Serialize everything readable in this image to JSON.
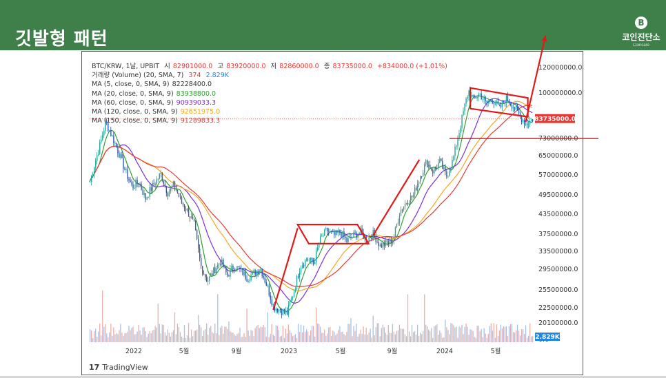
{
  "slide": {
    "title": "깃발형 패턴",
    "logo_name": "코인진단소",
    "logo_sub": "Coincare",
    "logo_glyph": "B"
  },
  "legend": {
    "symbol": "BTC/KRW, 1날, UPBIT",
    "ohlc": [
      {
        "label": "시",
        "value": "82901000.0"
      },
      {
        "label": "고",
        "value": "83920000.0"
      },
      {
        "label": "저",
        "value": "82860000.0"
      },
      {
        "label": "종",
        "value": "83735000.0"
      }
    ],
    "change": "+834000.0 (+1.01%)",
    "volume": {
      "label": "거래량 (Volume) (20, SMA, 7)",
      "v1": "374",
      "v2": "2.829K"
    },
    "ma": [
      {
        "label": "MA (5, close, 0, SMA, 9)",
        "value": "82228400.0",
        "color": "#111111"
      },
      {
        "label": "MA (20, close, 0, SMA, 9)",
        "value": "83938800.0",
        "color": "#2e9e2e"
      },
      {
        "label": "MA (60, close, 0, SMA, 9)",
        "value": "90939033.3",
        "color": "#7b2fd6"
      },
      {
        "label": "MA (120, close, 0, SMA, 9)",
        "value": "92651975.0",
        "color": "#f5a623"
      },
      {
        "label": "MA (150, close, 0, SMA, 9)",
        "value": "91289833.3",
        "color": "#e53935"
      }
    ]
  },
  "brand": {
    "mark": "17",
    "name": "TradingView"
  },
  "chart_data": {
    "type": "candlestick",
    "y_scale": "log",
    "y_ticks": [
      "120000000.0",
      "100000000.0",
      "73000000.0",
      "65000000.0",
      "57000000.0",
      "49500000.0",
      "43500000.0",
      "37500000.0",
      "33500000.0",
      "29500000.0",
      "25500000.0",
      "22500000.0",
      "20100000.0",
      "0.0"
    ],
    "x_ticks": [
      "2022",
      "5월",
      "9월",
      "2023",
      "5월",
      "9월",
      "2024",
      "5월"
    ],
    "last_price_label": "83735000.0",
    "volume_label": "2.829K",
    "price_path": [
      [
        0,
        54000000
      ],
      [
        0.01,
        61000000
      ],
      [
        0.025,
        72000000
      ],
      [
        0.035,
        82000000
      ],
      [
        0.05,
        74000000
      ],
      [
        0.065,
        66000000
      ],
      [
        0.08,
        58000000
      ],
      [
        0.095,
        52000000
      ],
      [
        0.11,
        54000000
      ],
      [
        0.125,
        48000000
      ],
      [
        0.14,
        52000000
      ],
      [
        0.16,
        57000000
      ],
      [
        0.175,
        50000000
      ],
      [
        0.19,
        53000000
      ],
      [
        0.205,
        47000000
      ],
      [
        0.22,
        44000000
      ],
      [
        0.235,
        40000000
      ],
      [
        0.25,
        30000000
      ],
      [
        0.265,
        27000000
      ],
      [
        0.28,
        29000000
      ],
      [
        0.295,
        31000000
      ],
      [
        0.31,
        28000000
      ],
      [
        0.325,
        30000000
      ],
      [
        0.34,
        29000000
      ],
      [
        0.355,
        27500000
      ],
      [
        0.37,
        28500000
      ],
      [
        0.385,
        29500000
      ],
      [
        0.4,
        26000000
      ],
      [
        0.415,
        22500000
      ],
      [
        0.43,
        22000000
      ],
      [
        0.445,
        21500000
      ],
      [
        0.46,
        25000000
      ],
      [
        0.475,
        30000000
      ],
      [
        0.49,
        31500000
      ],
      [
        0.505,
        30500000
      ],
      [
        0.52,
        36000000
      ],
      [
        0.535,
        38500000
      ],
      [
        0.55,
        37000000
      ],
      [
        0.565,
        38000000
      ],
      [
        0.58,
        35500000
      ],
      [
        0.595,
        37000000
      ],
      [
        0.61,
        38000000
      ],
      [
        0.625,
        36000000
      ],
      [
        0.64,
        37500000
      ],
      [
        0.655,
        34500000
      ],
      [
        0.67,
        35000000
      ],
      [
        0.685,
        36000000
      ],
      [
        0.7,
        44000000
      ],
      [
        0.715,
        47000000
      ],
      [
        0.73,
        49000000
      ],
      [
        0.745,
        56000000
      ],
      [
        0.76,
        62000000
      ],
      [
        0.775,
        58000000
      ],
      [
        0.79,
        62000000
      ],
      [
        0.805,
        56000000
      ],
      [
        0.82,
        63000000
      ],
      [
        0.835,
        78000000
      ],
      [
        0.845,
        90000000
      ],
      [
        0.855,
        102000000
      ],
      [
        0.865,
        96000000
      ],
      [
        0.88,
        100000000
      ],
      [
        0.895,
        93000000
      ],
      [
        0.91,
        96000000
      ],
      [
        0.925,
        90000000
      ],
      [
        0.94,
        97000000
      ],
      [
        0.955,
        92000000
      ],
      [
        0.97,
        86000000
      ],
      [
        0.985,
        81000000
      ],
      [
        1.0,
        83735000
      ]
    ],
    "ma_series": [
      {
        "name": "MA 20",
        "color": "#2e9e2e"
      },
      {
        "name": "MA 60",
        "color": "#7b2fd6"
      },
      {
        "name": "MA 120",
        "color": "#f5a623"
      },
      {
        "name": "MA 150",
        "color": "#e53935"
      }
    ],
    "annotations": [
      {
        "type": "flag",
        "pole": [
          [
            0.415,
            22000000
          ],
          [
            0.47,
            39000000
          ]
        ],
        "box": [
          [
            0.47,
            40000000
          ],
          [
            0.605,
            40000000
          ],
          [
            0.63,
            35000000
          ],
          [
            0.495,
            35000000
          ]
        ]
      },
      {
        "type": "flag",
        "pole": [
          [
            0.64,
            37000000
          ],
          [
            0.745,
            63000000
          ]
        ],
        "box": [
          [
            0.86,
            104000000
          ],
          [
            0.99,
            97000000
          ],
          [
            0.99,
            85000000
          ],
          [
            0.86,
            90000000
          ]
        ]
      },
      {
        "type": "arrow-up",
        "from": [
          0.985,
          82000000
        ],
        "to": [
          1.03,
          150000000
        ]
      },
      {
        "type": "hline",
        "price": 73000000
      }
    ]
  }
}
